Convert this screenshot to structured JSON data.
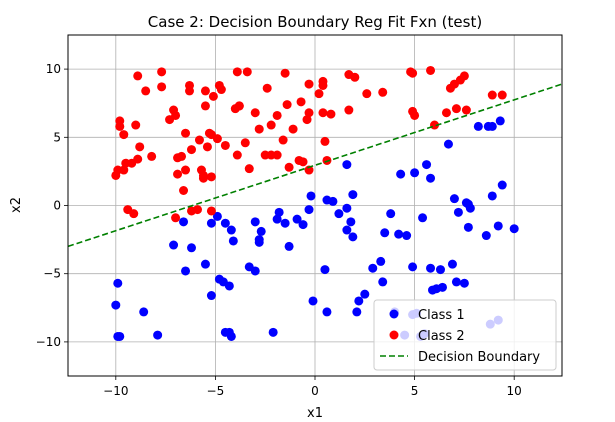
{
  "chart_data": {
    "type": "scatter",
    "title": "Case 2: Decision Boundary Reg Fit Fxn (test)",
    "xlabel": "x1",
    "ylabel": "x2",
    "xlim": [
      -12.4,
      12.4
    ],
    "ylim": [
      -12.5,
      12.5
    ],
    "xticks": [
      -10,
      -5,
      0,
      5,
      10
    ],
    "yticks": [
      -10,
      -5,
      0,
      5,
      10
    ],
    "grid": true,
    "legend_position": "bottom-right",
    "series": [
      {
        "name": "Class 1",
        "color": "#0000ff",
        "marker": "circle",
        "points": [
          [
            -10.0,
            -7.3
          ],
          [
            -9.9,
            -5.7
          ],
          [
            -9.9,
            -9.6
          ],
          [
            -9.8,
            -9.6
          ],
          [
            -8.6,
            -7.8
          ],
          [
            -7.9,
            -9.5
          ],
          [
            -7.1,
            -2.9
          ],
          [
            -6.6,
            -1.2
          ],
          [
            -6.5,
            -4.8
          ],
          [
            -6.2,
            -3.1
          ],
          [
            -5.5,
            -4.3
          ],
          [
            -5.2,
            -1.3
          ],
          [
            -5.2,
            -6.6
          ],
          [
            -4.9,
            -0.8
          ],
          [
            -4.8,
            -5.4
          ],
          [
            -4.6,
            -5.6
          ],
          [
            -4.5,
            -9.3
          ],
          [
            -4.3,
            -9.3
          ],
          [
            -4.2,
            -9.6
          ],
          [
            -4.3,
            -5.9
          ],
          [
            -4.5,
            -1.3
          ],
          [
            -4.2,
            -1.8
          ],
          [
            -4.1,
            -2.6
          ],
          [
            -3.3,
            -4.5
          ],
          [
            -3.0,
            -4.8
          ],
          [
            -3.0,
            -1.2
          ],
          [
            -2.8,
            -2.5
          ],
          [
            -2.8,
            -2.7
          ],
          [
            -2.7,
            -1.9
          ],
          [
            -2.1,
            -9.3
          ],
          [
            -1.9,
            -1.0
          ],
          [
            -1.8,
            -0.5
          ],
          [
            -1.5,
            -1.3
          ],
          [
            -1.3,
            -3.0
          ],
          [
            -0.9,
            -1.0
          ],
          [
            -0.6,
            -1.4
          ],
          [
            -0.3,
            -0.3
          ],
          [
            -0.2,
            0.7
          ],
          [
            -0.1,
            -7.0
          ],
          [
            0.5,
            -4.7
          ],
          [
            0.6,
            -7.8
          ],
          [
            0.6,
            0.4
          ],
          [
            0.9,
            0.3
          ],
          [
            1.2,
            -0.6
          ],
          [
            1.6,
            3.0
          ],
          [
            1.6,
            -0.2
          ],
          [
            1.6,
            -1.8
          ],
          [
            1.8,
            -1.2
          ],
          [
            1.9,
            -2.3
          ],
          [
            1.9,
            0.8
          ],
          [
            2.1,
            -7.8
          ],
          [
            2.2,
            -7.0
          ],
          [
            2.5,
            -6.5
          ],
          [
            2.9,
            -4.6
          ],
          [
            3.3,
            -4.1
          ],
          [
            3.4,
            -5.6
          ],
          [
            3.5,
            -2.0
          ],
          [
            3.8,
            -0.6
          ],
          [
            4.2,
            -2.1
          ],
          [
            4.3,
            2.3
          ],
          [
            4.6,
            -2.2
          ],
          [
            4.9,
            -4.5
          ],
          [
            4.9,
            -8.0
          ],
          [
            5.0,
            2.4
          ],
          [
            5.4,
            -0.9
          ],
          [
            5.6,
            3.0
          ],
          [
            5.8,
            2.0
          ],
          [
            5.8,
            -4.6
          ],
          [
            5.9,
            -6.2
          ],
          [
            6.1,
            -6.1
          ],
          [
            6.3,
            -4.7
          ],
          [
            6.4,
            -6.0
          ],
          [
            6.7,
            4.5
          ],
          [
            6.9,
            -4.3
          ],
          [
            7.0,
            0.5
          ],
          [
            7.1,
            -5.6
          ],
          [
            7.2,
            -0.5
          ],
          [
            7.5,
            -5.7
          ],
          [
            7.6,
            0.2
          ],
          [
            7.8,
            -0.2
          ],
          [
            7.7,
            -1.6
          ],
          [
            7.7,
            0.1
          ],
          [
            8.2,
            5.8
          ],
          [
            8.6,
            -2.2
          ],
          [
            8.7,
            5.8
          ],
          [
            8.9,
            5.8
          ],
          [
            8.9,
            0.7
          ],
          [
            9.3,
            6.2
          ],
          [
            9.4,
            1.5
          ],
          [
            9.2,
            -1.5
          ],
          [
            10.0,
            -1.7
          ],
          [
            8.8,
            -8.7
          ],
          [
            9.2,
            -8.4
          ],
          [
            4.5,
            -9.5
          ],
          [
            5.3,
            -9.6
          ],
          [
            5.1,
            -7.9
          ],
          [
            4.0,
            -7.8
          ],
          [
            5.5,
            -9.4
          ]
        ]
      },
      {
        "name": "Class 2",
        "color": "#ff0000",
        "marker": "circle",
        "points": [
          [
            -9.9,
            2.6
          ],
          [
            -10.0,
            2.2
          ],
          [
            -9.8,
            6.2
          ],
          [
            -9.8,
            5.8
          ],
          [
            -9.6,
            5.2
          ],
          [
            -9.6,
            2.6
          ],
          [
            -9.5,
            3.1
          ],
          [
            -9.4,
            -0.3
          ],
          [
            -9.2,
            3.1
          ],
          [
            -9.1,
            -0.6
          ],
          [
            -9.0,
            5.9
          ],
          [
            -8.9,
            9.5
          ],
          [
            -8.9,
            3.4
          ],
          [
            -8.8,
            4.3
          ],
          [
            -8.5,
            8.4
          ],
          [
            -8.2,
            3.6
          ],
          [
            -7.7,
            8.7
          ],
          [
            -7.7,
            9.8
          ],
          [
            -7.3,
            6.3
          ],
          [
            -7.1,
            7.0
          ],
          [
            -7.0,
            6.6
          ],
          [
            -7.0,
            -0.9
          ],
          [
            -6.9,
            2.3
          ],
          [
            -6.9,
            3.5
          ],
          [
            -6.7,
            3.6
          ],
          [
            -6.6,
            1.1
          ],
          [
            -6.5,
            5.3
          ],
          [
            -6.5,
            2.6
          ],
          [
            -6.3,
            8.4
          ],
          [
            -6.3,
            8.8
          ],
          [
            -6.2,
            4.1
          ],
          [
            -6.2,
            -0.4
          ],
          [
            -5.9,
            -0.3
          ],
          [
            -5.8,
            4.8
          ],
          [
            -5.7,
            2.6
          ],
          [
            -5.6,
            2.2
          ],
          [
            -5.6,
            2.0
          ],
          [
            -5.5,
            8.4
          ],
          [
            -5.5,
            7.3
          ],
          [
            -5.4,
            4.3
          ],
          [
            -5.3,
            5.3
          ],
          [
            -5.2,
            -0.4
          ],
          [
            -5.2,
            2.1
          ],
          [
            -5.2,
            5.2
          ],
          [
            -5.1,
            8.0
          ],
          [
            -4.9,
            4.9
          ],
          [
            -4.8,
            8.8
          ],
          [
            -4.7,
            8.5
          ],
          [
            -4.5,
            4.4
          ],
          [
            -3.9,
            9.8
          ],
          [
            -4.0,
            7.1
          ],
          [
            -3.8,
            7.3
          ],
          [
            -3.9,
            3.7
          ],
          [
            -3.8,
            7.3
          ],
          [
            -3.5,
            4.6
          ],
          [
            -3.4,
            9.8
          ],
          [
            -3.3,
            2.7
          ],
          [
            -3.0,
            6.8
          ],
          [
            -2.8,
            5.6
          ],
          [
            -2.5,
            3.7
          ],
          [
            -2.4,
            8.6
          ],
          [
            -2.2,
            3.7
          ],
          [
            -2.2,
            5.9
          ],
          [
            -1.9,
            6.6
          ],
          [
            -1.9,
            3.7
          ],
          [
            -1.6,
            4.8
          ],
          [
            -1.5,
            9.7
          ],
          [
            -1.4,
            7.4
          ],
          [
            -1.3,
            2.8
          ],
          [
            -1.1,
            5.6
          ],
          [
            -0.8,
            3.3
          ],
          [
            -0.7,
            7.6
          ],
          [
            -0.6,
            3.2
          ],
          [
            -0.4,
            6.3
          ],
          [
            -0.3,
            6.8
          ],
          [
            -0.3,
            2.6
          ],
          [
            -0.3,
            8.9
          ],
          [
            0.2,
            8.2
          ],
          [
            0.4,
            8.8
          ],
          [
            0.4,
            9.1
          ],
          [
            0.4,
            6.8
          ],
          [
            0.5,
            4.7
          ],
          [
            0.6,
            3.3
          ],
          [
            0.8,
            6.7
          ],
          [
            1.7,
            9.6
          ],
          [
            1.7,
            7.0
          ],
          [
            2.0,
            9.4
          ],
          [
            2.6,
            8.2
          ],
          [
            3.4,
            8.3
          ],
          [
            4.8,
            9.8
          ],
          [
            4.9,
            9.7
          ],
          [
            4.9,
            6.9
          ],
          [
            5.0,
            6.6
          ],
          [
            5.8,
            9.9
          ],
          [
            6.0,
            5.9
          ],
          [
            6.6,
            6.8
          ],
          [
            6.8,
            8.6
          ],
          [
            7.0,
            8.9
          ],
          [
            7.1,
            7.1
          ],
          [
            7.3,
            9.2
          ],
          [
            7.5,
            9.5
          ],
          [
            7.6,
            7.0
          ],
          [
            8.9,
            8.1
          ],
          [
            9.4,
            8.1
          ]
        ]
      }
    ],
    "boundary": {
      "name": "Decision Boundary",
      "color": "#008000",
      "style": "dashed",
      "points": [
        [
          -12.4,
          -3.0
        ],
        [
          12.4,
          8.9
        ]
      ]
    }
  }
}
